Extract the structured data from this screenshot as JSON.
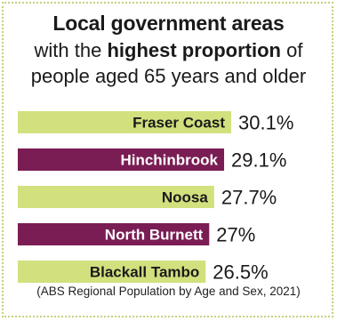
{
  "title": {
    "line1": "Local government areas",
    "line2_pre": "with the ",
    "line2_bold": "highest proportion",
    "line2_post": " of",
    "line3": "people aged 65 years and older"
  },
  "source": "(ABS Regional Population by Age and Sex, 2021)",
  "colors": {
    "green": "#d2e07e",
    "purple": "#7a1d54",
    "green_text": "#1a1a1a",
    "purple_text": "#ffffff",
    "border": "#c3d27a"
  },
  "chart_data": {
    "type": "bar",
    "orientation": "horizontal",
    "categories": [
      "Fraser Coast",
      "Hinchinbrook",
      "Noosa",
      "North Burnett",
      "Blackall Tambo"
    ],
    "values": [
      30.1,
      29.1,
      27.7,
      27,
      26.5
    ],
    "value_labels": [
      "30.1%",
      "29.1%",
      "27.7%",
      "27%",
      "26.5%"
    ],
    "bar_colors": [
      "green",
      "purple",
      "green",
      "purple",
      "green"
    ],
    "title": "Local government areas with the highest proportion of people aged 65 years and older",
    "xlabel": "",
    "ylabel": "",
    "grid": false,
    "legend": "none"
  }
}
